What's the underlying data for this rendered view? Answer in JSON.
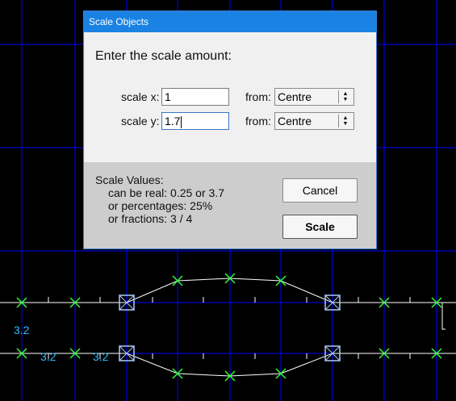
{
  "dialog": {
    "title": "Scale Objects",
    "prompt": "Enter the scale amount:",
    "scale_x_label": "scale x:",
    "scale_x_value": "1",
    "scale_y_label": "scale y:",
    "scale_y_value": "1.7",
    "from_label": "from:",
    "from_x_value": "Centre",
    "from_y_value": "Centre",
    "info": {
      "heading": "Scale Values:",
      "line1": "can be real: 0.25 or 3.7",
      "line2": "or percentages: 25%",
      "line3": "or fractions: 3 / 4"
    },
    "cancel_label": "Cancel",
    "scale_label": "Scale"
  },
  "canvas": {
    "labels": [
      "3.2",
      "3.2",
      "3.2"
    ],
    "colors": {
      "background": "#000000",
      "grid": "#0000ff",
      "curve": "#ffffff",
      "node": "#33ff33",
      "dimension": "#33bbff",
      "control_box": "#aaccff"
    }
  }
}
